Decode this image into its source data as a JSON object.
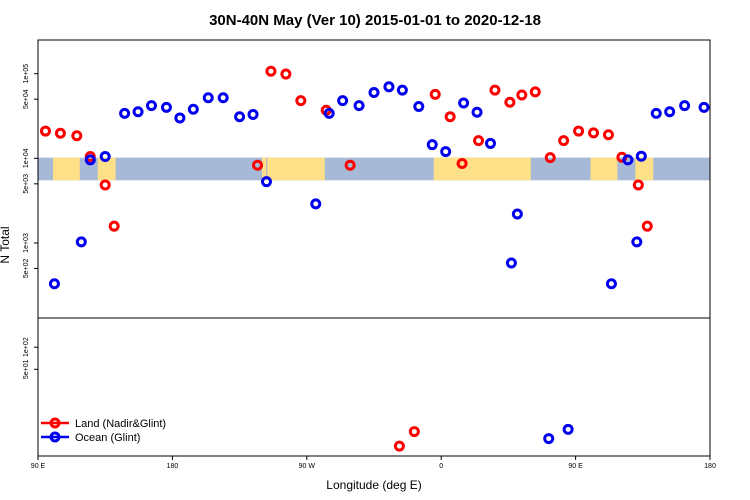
{
  "chart_data": {
    "type": "scatter",
    "title": "30N-40N May (Ver 10)   2015-01-01 to 2020-12-18",
    "xlabel": "Longitude (deg E)",
    "ylabel": "N Total",
    "xlim": [
      90,
      540
    ],
    "x_ticks": [
      {
        "value": 90,
        "label": "90 E"
      },
      {
        "value": 180,
        "label": "180"
      },
      {
        "value": 270,
        "label": "90 W"
      },
      {
        "value": 360,
        "label": "0"
      },
      {
        "value": 450,
        "label": "90 E"
      },
      {
        "value": 540,
        "label": "180"
      }
    ],
    "top_panel": {
      "yscale": "log",
      "ylim": [
        130,
        250000
      ],
      "y_ticks": [
        {
          "value": 500,
          "label": "5e+02"
        },
        {
          "value": 1000,
          "label": "1e+03"
        },
        {
          "value": 5000,
          "label": "5e+03"
        },
        {
          "value": 10000,
          "label": "1e+04"
        },
        {
          "value": 50000,
          "label": "5e+04"
        },
        {
          "value": 100000,
          "label": "1e+05"
        }
      ],
      "map_band": {
        "ymin": 5500,
        "ymax": 10200,
        "ocean_color": "#a6b9d6",
        "land_color": "#fde087"
      }
    },
    "bottom_panel": {
      "yscale": "log",
      "ylim": [
        3.3,
        250
      ],
      "y_ticks": [
        {
          "value": 50,
          "label": "5e+01"
        },
        {
          "value": 100,
          "label": "1e+02"
        }
      ]
    },
    "series": [
      {
        "name": "Land (Nadir&Glint)",
        "color": "#ff0000",
        "top": [
          {
            "x": 95,
            "y": 21000
          },
          {
            "x": 105,
            "y": 19800
          },
          {
            "x": 116,
            "y": 18500
          },
          {
            "x": 125,
            "y": 10500
          },
          {
            "x": 135,
            "y": 4850
          },
          {
            "x": 141,
            "y": 1580
          },
          {
            "x": 237,
            "y": 8300
          },
          {
            "x": 246,
            "y": 107000
          },
          {
            "x": 256,
            "y": 99000
          },
          {
            "x": 266,
            "y": 48000
          },
          {
            "x": 283,
            "y": 37000
          },
          {
            "x": 299,
            "y": 8300
          },
          {
            "x": 356,
            "y": 57000
          },
          {
            "x": 366,
            "y": 31000
          },
          {
            "x": 374,
            "y": 8700
          },
          {
            "x": 385,
            "y": 16200
          },
          {
            "x": 396,
            "y": 64000
          },
          {
            "x": 406,
            "y": 46000
          },
          {
            "x": 414,
            "y": 56000
          },
          {
            "x": 423,
            "y": 61000
          },
          {
            "x": 433,
            "y": 10200
          },
          {
            "x": 442,
            "y": 16200
          },
          {
            "x": 452,
            "y": 21000
          },
          {
            "x": 462,
            "y": 20000
          },
          {
            "x": 472,
            "y": 19000
          },
          {
            "x": 481,
            "y": 10300
          },
          {
            "x": 492,
            "y": 4850
          },
          {
            "x": 498,
            "y": 1580
          }
        ],
        "bottom": [
          {
            "x": 332,
            "y": 4.5
          },
          {
            "x": 342,
            "y": 7.1
          }
        ]
      },
      {
        "name": "Ocean (Glint)",
        "color": "#0000ee",
        "top": [
          {
            "x": 101,
            "y": 330
          },
          {
            "x": 119,
            "y": 1030
          },
          {
            "x": 125,
            "y": 9600
          },
          {
            "x": 135,
            "y": 10500
          },
          {
            "x": 148,
            "y": 34000
          },
          {
            "x": 157,
            "y": 35500
          },
          {
            "x": 166,
            "y": 42000
          },
          {
            "x": 176,
            "y": 40000
          },
          {
            "x": 185,
            "y": 30000
          },
          {
            "x": 194,
            "y": 38000
          },
          {
            "x": 204,
            "y": 52000
          },
          {
            "x": 214,
            "y": 52000
          },
          {
            "x": 225,
            "y": 31000
          },
          {
            "x": 234,
            "y": 33000
          },
          {
            "x": 243,
            "y": 5300
          },
          {
            "x": 276,
            "y": 2900
          },
          {
            "x": 285,
            "y": 34000
          },
          {
            "x": 294,
            "y": 48000
          },
          {
            "x": 305,
            "y": 42000
          },
          {
            "x": 315,
            "y": 60000
          },
          {
            "x": 325,
            "y": 70000
          },
          {
            "x": 334,
            "y": 64000
          },
          {
            "x": 345,
            "y": 41000
          },
          {
            "x": 354,
            "y": 14500
          },
          {
            "x": 363,
            "y": 12000
          },
          {
            "x": 375,
            "y": 45000
          },
          {
            "x": 384,
            "y": 35000
          },
          {
            "x": 393,
            "y": 15000
          },
          {
            "x": 407,
            "y": 580
          },
          {
            "x": 411,
            "y": 2200
          },
          {
            "x": 474,
            "y": 330
          },
          {
            "x": 491,
            "y": 1030
          },
          {
            "x": 485,
            "y": 9600
          },
          {
            "x": 494,
            "y": 10600
          },
          {
            "x": 504,
            "y": 34000
          },
          {
            "x": 513,
            "y": 35500
          },
          {
            "x": 523,
            "y": 42000
          },
          {
            "x": 536,
            "y": 40000
          }
        ],
        "bottom": [
          {
            "x": 432,
            "y": 5.7
          },
          {
            "x": 445,
            "y": 7.6
          }
        ]
      }
    ],
    "legend": {
      "position": "bottom-left"
    }
  }
}
